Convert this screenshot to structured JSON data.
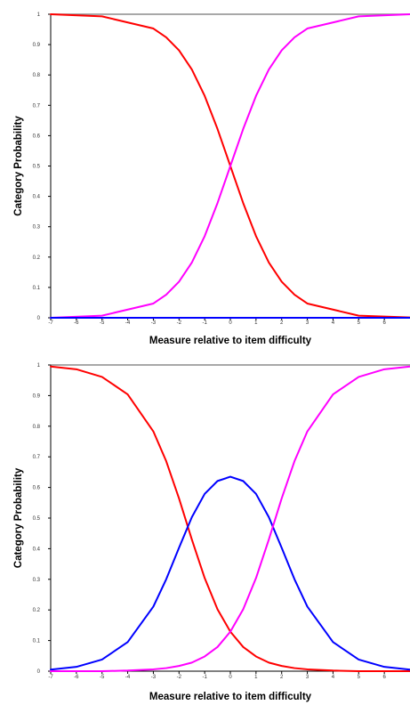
{
  "chart_data": [
    {
      "type": "line",
      "xlabel": "Measure relative to item difficulty",
      "ylabel": "Category Probability",
      "xlim": [
        -7,
        7
      ],
      "ylim": [
        0,
        1
      ],
      "x_ticks": [
        -7,
        -6,
        -5,
        -4,
        -3,
        -2,
        -1,
        0,
        1,
        2,
        3,
        4,
        5,
        6
      ],
      "y_ticks": [
        0,
        0.1,
        0.2,
        0.3,
        0.4,
        0.5,
        0.6,
        0.7,
        0.8,
        0.9,
        1
      ],
      "x_tick_labels": [
        "-7",
        "-6",
        "-5",
        "-4",
        "-3",
        "-2",
        "-1",
        "0",
        "1",
        "2",
        "3",
        "4",
        "5",
        "6"
      ],
      "y_tick_labels": [
        "0",
        "0.1",
        "0.2",
        "0.3",
        "0.4",
        "0.5",
        "0.6",
        "0.7",
        "0.8",
        "0.9",
        "1"
      ],
      "grid": false,
      "series": [
        {
          "color": "#ff0000",
          "x": [
            -7,
            -5,
            -3,
            -2.5,
            -2,
            -1.5,
            -1,
            -0.5,
            0,
            0.5,
            1,
            1.5,
            2,
            2.5,
            3,
            5,
            7
          ],
          "values": [
            1.0,
            0.993,
            0.953,
            0.924,
            0.881,
            0.818,
            0.731,
            0.622,
            0.5,
            0.378,
            0.269,
            0.182,
            0.119,
            0.076,
            0.047,
            0.007,
            0.001
          ]
        },
        {
          "color": "#ff00ff",
          "x": [
            -7,
            -5,
            -3,
            -2.5,
            -2,
            -1.5,
            -1,
            -0.5,
            0,
            0.5,
            1,
            1.5,
            2,
            2.5,
            3,
            5,
            7
          ],
          "values": [
            0.0,
            0.007,
            0.047,
            0.076,
            0.119,
            0.182,
            0.269,
            0.378,
            0.5,
            0.622,
            0.731,
            0.818,
            0.881,
            0.924,
            0.953,
            0.993,
            1.0
          ]
        },
        {
          "color": "#0000ff",
          "x": [
            -7,
            7
          ],
          "values": [
            0,
            0
          ]
        }
      ]
    },
    {
      "type": "line",
      "xlabel": "Measure relative to item difficulty",
      "ylabel": "Category Probability",
      "xlim": [
        -7,
        7
      ],
      "ylim": [
        0,
        1
      ],
      "x_ticks": [
        -7,
        -6,
        -5,
        -4,
        -3,
        -2,
        -1,
        0,
        1,
        2,
        3,
        4,
        5,
        6
      ],
      "y_ticks": [
        0,
        0.1,
        0.2,
        0.3,
        0.4,
        0.5,
        0.6,
        0.7,
        0.8,
        0.9,
        1
      ],
      "x_tick_labels": [
        "-7",
        "-6",
        "-5",
        "-4",
        "-3",
        "-2",
        "-1",
        "0",
        "1",
        "2",
        "3",
        "4",
        "5",
        "6"
      ],
      "y_tick_labels": [
        "0",
        "0.1",
        "0.2",
        "0.3",
        "0.4",
        "0.5",
        "0.6",
        "0.7",
        "0.8",
        "0.9",
        "1"
      ],
      "grid": false,
      "series": [
        {
          "color": "#ff0000",
          "x": [
            -7,
            -6,
            -5,
            -4,
            -3,
            -2.5,
            -2,
            -1.5,
            -1,
            -0.5,
            0,
            0.5,
            1,
            1.5,
            2,
            2.5,
            3,
            4,
            5,
            6,
            7
          ],
          "values": [
            0.995,
            0.986,
            0.961,
            0.904,
            0.783,
            0.686,
            0.564,
            0.43,
            0.304,
            0.202,
            0.129,
            0.079,
            0.048,
            0.028,
            0.017,
            0.01,
            0.006,
            0.002,
            0.0,
            0.0,
            0.0
          ]
        },
        {
          "color": "#0000ff",
          "x": [
            -7,
            -6,
            -5,
            -4,
            -3,
            -2.5,
            -2,
            -1.5,
            -1,
            -0.5,
            0,
            0.5,
            1,
            1.5,
            2,
            2.5,
            3,
            4,
            5,
            6,
            7
          ],
          "values": [
            0.005,
            0.014,
            0.038,
            0.095,
            0.211,
            0.3,
            0.403,
            0.503,
            0.579,
            0.621,
            0.635,
            0.621,
            0.579,
            0.503,
            0.403,
            0.3,
            0.211,
            0.095,
            0.038,
            0.014,
            0.005
          ]
        },
        {
          "color": "#ff00ff",
          "x": [
            -7,
            -6,
            -5,
            -4,
            -3,
            -2.5,
            -2,
            -1.5,
            -1,
            -0.5,
            0,
            0.5,
            1,
            1.5,
            2,
            2.5,
            3,
            4,
            5,
            6,
            7
          ],
          "values": [
            0.0,
            0.0,
            0.0,
            0.002,
            0.006,
            0.01,
            0.017,
            0.028,
            0.048,
            0.079,
            0.129,
            0.202,
            0.304,
            0.43,
            0.564,
            0.686,
            0.783,
            0.904,
            0.961,
            0.986,
            0.995
          ]
        }
      ]
    }
  ]
}
